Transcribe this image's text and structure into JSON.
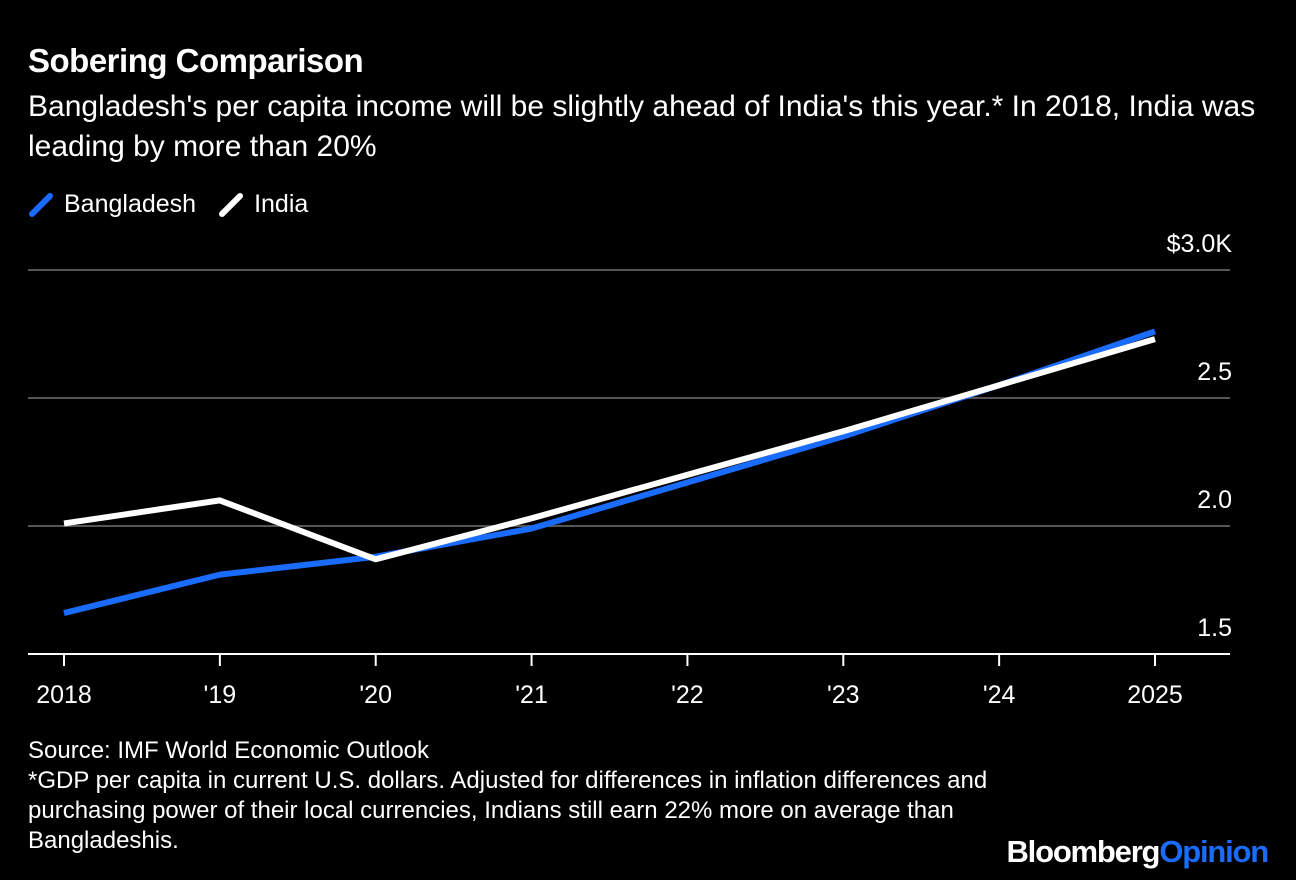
{
  "header": {
    "title": "Sobering Comparison",
    "subtitle": "Bangladesh's per capita income will be slightly ahead of India's this year.* In 2018, India was leading by more than 20%"
  },
  "footer": {
    "source": "Source: IMF World Economic Outlook",
    "note": "*GDP per capita in current U.S. dollars. Adjusted for differences in inflation differences and purchasing power of their local currencies, Indians still earn 22% more on average than Bangladeshis."
  },
  "brand": {
    "part1": "Bloomberg",
    "part2": "Opinion"
  },
  "colors": {
    "background": "#000000",
    "bangladesh": "#1a6cff",
    "india": "#ffffff",
    "grid": "#555555",
    "brand_accent": "#1a6cff"
  },
  "chart_data": {
    "type": "line",
    "x": [
      2018,
      2019,
      2020,
      2021,
      2022,
      2023,
      2024,
      2025
    ],
    "x_tick_labels": [
      "2018",
      "'19",
      "'20",
      "'21",
      "'22",
      "'23",
      "'24",
      "2025"
    ],
    "y_ticks": [
      1.5,
      2.0,
      2.5,
      3.0
    ],
    "y_tick_labels": [
      "1.5",
      "2.0",
      "2.5",
      "$3.0K"
    ],
    "ylim": [
      1.5,
      3.0
    ],
    "grid": true,
    "legend_position": "top-left",
    "series": [
      {
        "name": "Bangladesh",
        "color": "#1a6cff",
        "values": [
          1.66,
          1.81,
          1.88,
          1.99,
          2.17,
          2.35,
          2.55,
          2.76
        ]
      },
      {
        "name": "India",
        "color": "#ffffff",
        "values": [
          2.01,
          2.1,
          1.87,
          2.03,
          2.2,
          2.37,
          2.55,
          2.73
        ]
      }
    ]
  }
}
